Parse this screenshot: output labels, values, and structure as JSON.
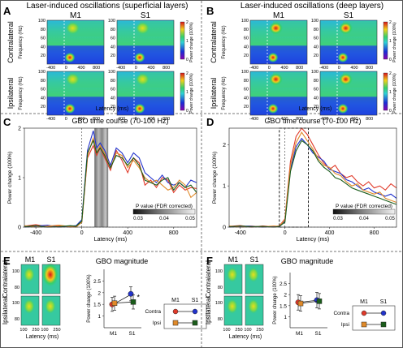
{
  "panels": {
    "A": {
      "letter": "A",
      "title": "Laser-induced oscillations (superficial layers)"
    },
    "B": {
      "letter": "B",
      "title": "Laser-induced oscillations (deep layers)"
    },
    "C": {
      "letter": "C",
      "title": "GBO time course (70-100 Hz)"
    },
    "D": {
      "letter": "D",
      "title": "GBO time course (70-100 Hz)"
    },
    "E": {
      "letter": "E",
      "title": "GBO magnitude"
    },
    "F": {
      "letter": "F",
      "title": "GBO magnitude"
    }
  },
  "labels": {
    "m1": "M1",
    "s1": "S1",
    "contralateral": "Contralateral",
    "ipsilateral": "Ipsilateral",
    "frequency": "Frequency (Hz)",
    "latency": "Latency (ms)",
    "power_change": "Power change (100%)",
    "pvalue": "P value (FDR corrected)",
    "contra": "Contra",
    "ipsi": "Ipsi"
  },
  "colors": {
    "m1_contra": "#e03a2a",
    "s1_contra": "#2233cc",
    "m1_ipsi": "#e08a2a",
    "s1_ipsi": "#1a5c1a",
    "heat_low": "#1a2bd6",
    "heat_mid": "#31d48c",
    "heat_high": "#d8121a"
  },
  "chart_data": [
    {
      "type": "heatmap",
      "panel": "A",
      "xlabel": "Latency (ms)",
      "ylabel": "Frequency (Hz)",
      "xlim": [
        -500,
        1000
      ],
      "ylim": [
        0,
        100
      ],
      "x_ticks": [
        -400,
        0,
        400,
        800
      ],
      "y_ticks": [
        20,
        40,
        60,
        80,
        100
      ],
      "colorbar": {
        "label": "Power change (100%)",
        "ticks": [
          "0",
          "1",
          "2"
        ]
      },
      "rows": [
        "Contralateral",
        "Ipsilateral"
      ],
      "cols": [
        "M1",
        "S1"
      ]
    },
    {
      "type": "heatmap",
      "panel": "B",
      "xlabel": "Latency (ms)",
      "ylabel": "Frequency (Hz)",
      "xlim": [
        -500,
        1000
      ],
      "ylim": [
        0,
        100
      ],
      "x_ticks": [
        -400,
        0,
        400,
        800
      ],
      "y_ticks": [
        20,
        40,
        60,
        80,
        100
      ],
      "colorbar": {
        "label": "Power change (100%)",
        "ticks": [
          "0",
          "1",
          "2"
        ]
      },
      "rows": [
        "Contralateral",
        "Ipsilateral"
      ],
      "cols": [
        "M1",
        "S1"
      ]
    },
    {
      "type": "line",
      "panel": "C",
      "title": "GBO time course (70-100 Hz)",
      "xlabel": "Latency (ms)",
      "ylabel": "Power change (100%)",
      "xlim": [
        -500,
        1000
      ],
      "ylim": [
        0,
        2
      ],
      "x_ticks": [
        -400,
        0,
        400,
        800
      ],
      "y_ticks": [
        0,
        1,
        2
      ],
      "pvalue_colorbar": {
        "label": "P value (FDR corrected)",
        "ticks": [
          "0.03",
          "0.04",
          "0.05"
        ]
      },
      "x": [
        -500,
        -400,
        -300,
        -200,
        -100,
        -50,
        0,
        50,
        100,
        130,
        160,
        200,
        250,
        300,
        350,
        400,
        450,
        500,
        550,
        600,
        650,
        700,
        750,
        800,
        850,
        900,
        950,
        1000
      ],
      "series": [
        {
          "color": "#e03a2a",
          "values": [
            0.02,
            0.05,
            0.01,
            0.03,
            0.0,
            0.02,
            0.1,
            1.4,
            1.65,
            1.45,
            1.6,
            1.4,
            1.15,
            1.55,
            1.35,
            1.1,
            1.4,
            1.3,
            0.85,
            0.95,
            0.8,
            1.0,
            0.95,
            0.7,
            0.85,
            0.75,
            0.8,
            0.78
          ]
        },
        {
          "color": "#2233cc",
          "values": [
            0.0,
            0.02,
            0.04,
            0.0,
            0.02,
            0.03,
            0.15,
            1.55,
            1.95,
            1.6,
            1.7,
            1.55,
            1.25,
            1.6,
            1.5,
            1.3,
            1.5,
            1.4,
            1.1,
            1.0,
            0.9,
            1.05,
            0.9,
            0.85,
            0.9,
            0.8,
            0.95,
            0.9
          ]
        },
        {
          "color": "#e08a2a",
          "values": [
            0.03,
            0.0,
            0.02,
            0.04,
            0.01,
            0.0,
            0.1,
            1.45,
            1.8,
            1.5,
            1.65,
            1.5,
            1.2,
            1.5,
            1.45,
            1.2,
            1.35,
            1.2,
            1.0,
            0.9,
            0.95,
            0.85,
            0.75,
            0.8,
            0.95,
            0.85,
            0.6,
            0.7
          ]
        },
        {
          "color": "#1a5c1a",
          "values": [
            0.01,
            0.03,
            0.0,
            0.01,
            0.03,
            0.02,
            0.12,
            1.5,
            1.75,
            1.5,
            1.6,
            1.45,
            1.2,
            1.45,
            1.4,
            1.25,
            1.4,
            1.25,
            0.95,
            0.9,
            0.85,
            0.95,
            1.0,
            0.75,
            0.9,
            0.8,
            0.85,
            0.7
          ]
        }
      ]
    },
    {
      "type": "line",
      "panel": "D",
      "title": "GBO time course (70-100 Hz)",
      "xlabel": "Latency (ms)",
      "ylabel": "Power change (100%)",
      "xlim": [
        -500,
        1000
      ],
      "ylim": [
        0,
        2.4
      ],
      "x_ticks": [
        -400,
        0,
        400,
        800
      ],
      "y_ticks": [
        0,
        1,
        2
      ],
      "pvalue_colorbar": {
        "label": "P value (FDR corrected)",
        "ticks": [
          "0.03",
          "0.04",
          "0.05"
        ]
      },
      "x": [
        -500,
        -400,
        -300,
        -200,
        -100,
        -50,
        0,
        50,
        100,
        150,
        200,
        250,
        300,
        350,
        400,
        450,
        500,
        550,
        600,
        650,
        700,
        750,
        800,
        850,
        900,
        950,
        1000
      ],
      "series": [
        {
          "color": "#e03a2a",
          "values": [
            0.02,
            0.04,
            0.0,
            0.03,
            0.01,
            0.03,
            0.2,
            1.6,
            2.2,
            2.4,
            2.25,
            2.0,
            1.75,
            1.55,
            1.4,
            1.5,
            1.3,
            1.2,
            1.25,
            1.1,
            1.0,
            1.1,
            0.95,
            1.0,
            0.9,
            1.05,
            0.95
          ]
        },
        {
          "color": "#2233cc",
          "values": [
            0.0,
            0.02,
            0.03,
            0.0,
            0.02,
            0.01,
            0.15,
            1.4,
            1.95,
            2.15,
            2.0,
            1.8,
            1.7,
            1.6,
            1.4,
            1.35,
            1.3,
            1.15,
            1.1,
            1.0,
            0.9,
            0.95,
            0.85,
            0.8,
            0.75,
            0.8,
            0.7
          ]
        },
        {
          "color": "#e08a2a",
          "values": [
            0.03,
            0.0,
            0.02,
            0.01,
            0.03,
            0.02,
            0.18,
            1.5,
            2.05,
            2.3,
            2.1,
            1.9,
            1.65,
            1.5,
            1.45,
            1.3,
            1.25,
            1.1,
            1.0,
            1.05,
            0.9,
            0.85,
            0.8,
            0.85,
            0.7,
            0.65,
            0.6
          ]
        },
        {
          "color": "#1a5c1a",
          "values": [
            0.01,
            0.03,
            0.01,
            0.02,
            0.0,
            0.02,
            0.12,
            1.35,
            1.85,
            2.1,
            2.0,
            1.85,
            1.6,
            1.45,
            1.35,
            1.2,
            1.15,
            1.05,
            0.95,
            0.9,
            0.85,
            0.8,
            0.75,
            0.7,
            0.65,
            0.6,
            0.55
          ]
        }
      ]
    },
    {
      "type": "line",
      "panel": "E",
      "title": "GBO magnitude",
      "ylabel": "Power change (100%)",
      "categories": [
        "M1",
        "S1"
      ],
      "ylim": [
        0.5,
        3
      ],
      "y_ticks": [
        1,
        1.5,
        2,
        2.5
      ],
      "annotation": "*",
      "legend": {
        "rows": [
          "Contra",
          "Ipsi"
        ],
        "cols": [
          "M1",
          "S1"
        ]
      },
      "series": [
        {
          "name": "Contra",
          "values": [
            1.5,
            1.95
          ],
          "errors": [
            0.3,
            0.3
          ],
          "colors": [
            "#e03a2a",
            "#2233cc"
          ]
        },
        {
          "name": "Ipsi",
          "values": [
            1.55,
            1.6
          ],
          "errors": [
            0.3,
            0.3
          ],
          "colors": [
            "#e08a2a",
            "#1a5c1a"
          ]
        }
      ]
    },
    {
      "type": "line",
      "panel": "F",
      "title": "GBO magnitude",
      "ylabel": "Power change (100%)",
      "categories": [
        "M1",
        "S1"
      ],
      "ylim": [
        0.5,
        3
      ],
      "y_ticks": [
        1,
        1.5,
        2,
        2.5
      ],
      "legend": {
        "rows": [
          "Contra",
          "Ipsi"
        ],
        "cols": [
          "M1",
          "S1"
        ]
      },
      "series": [
        {
          "name": "Contra",
          "values": [
            1.65,
            1.75
          ],
          "errors": [
            0.35,
            0.35
          ],
          "colors": [
            "#e03a2a",
            "#2233cc"
          ]
        },
        {
          "name": "Ipsi",
          "values": [
            1.6,
            1.7
          ],
          "errors": [
            0.35,
            0.35
          ],
          "colors": [
            "#e08a2a",
            "#1a5c1a"
          ]
        }
      ]
    }
  ]
}
